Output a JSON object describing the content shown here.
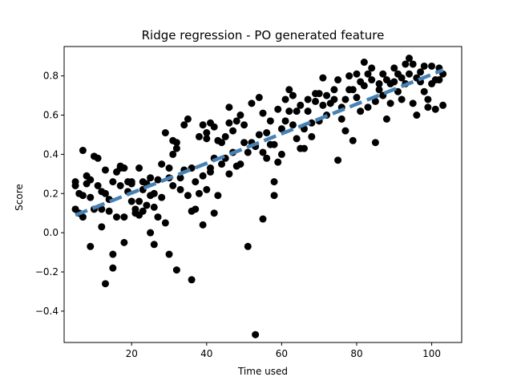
{
  "chart_data": {
    "type": "scatter",
    "title": "Ridge regression - PO generated feature",
    "xlabel": "Time used",
    "ylabel": "Score",
    "xlim": [
      2.0,
      108.0
    ],
    "ylim": [
      -0.56,
      0.95
    ],
    "xticks": [
      20,
      40,
      60,
      80,
      100
    ],
    "yticks": [
      -0.4,
      -0.2,
      0.0,
      0.2,
      0.4,
      0.6,
      0.8
    ],
    "grid": false,
    "legend": "none",
    "colors": {
      "points": "#000000",
      "fit_line": "#4682b4"
    },
    "fit_line": {
      "style": "dashed",
      "x": [
        5,
        103
      ],
      "y": [
        0.09,
        0.83
      ]
    },
    "points": [
      [
        5,
        0.26
      ],
      [
        5,
        0.24
      ],
      [
        5,
        0.12
      ],
      [
        6,
        0.2
      ],
      [
        6,
        0.1
      ],
      [
        7,
        0.42
      ],
      [
        7,
        0.19
      ],
      [
        7,
        0.08
      ],
      [
        8,
        0.29
      ],
      [
        8,
        0.25
      ],
      [
        9,
        -0.07
      ],
      [
        9,
        0.27
      ],
      [
        9,
        0.18
      ],
      [
        10,
        0.39
      ],
      [
        10,
        0.12
      ],
      [
        11,
        0.38
      ],
      [
        11,
        0.24
      ],
      [
        12,
        0.21
      ],
      [
        12,
        0.03
      ],
      [
        12,
        0.12
      ],
      [
        13,
        0.32
      ],
      [
        13,
        -0.26
      ],
      [
        13,
        0.2
      ],
      [
        14,
        0.11
      ],
      [
        14,
        0.17
      ],
      [
        15,
        -0.18
      ],
      [
        15,
        -0.11
      ],
      [
        15,
        0.26
      ],
      [
        16,
        0.08
      ],
      [
        16,
        0.31
      ],
      [
        17,
        0.33
      ],
      [
        17,
        0.24
      ],
      [
        17,
        0.34
      ],
      [
        18,
        0.08
      ],
      [
        18,
        -0.05
      ],
      [
        18,
        0.33
      ],
      [
        19,
        0.26
      ],
      [
        19,
        0.21
      ],
      [
        20,
        0.25
      ],
      [
        20,
        0.16
      ],
      [
        20,
        0.26
      ],
      [
        21,
        0.1
      ],
      [
        21,
        0.12
      ],
      [
        22,
        0.33
      ],
      [
        22,
        0.16
      ],
      [
        22,
        0.09
      ],
      [
        23,
        0.11
      ],
      [
        23,
        0.22
      ],
      [
        23,
        0.26
      ],
      [
        24,
        0.14
      ],
      [
        24,
        0.25
      ],
      [
        25,
        0.0
      ],
      [
        25,
        0.19
      ],
      [
        25,
        0.28
      ],
      [
        26,
        -0.06
      ],
      [
        26,
        0.13
      ],
      [
        26,
        0.2
      ],
      [
        27,
        0.08
      ],
      [
        27,
        0.27
      ],
      [
        28,
        0.35
      ],
      [
        28,
        0.18
      ],
      [
        29,
        0.51
      ],
      [
        29,
        0.05
      ],
      [
        30,
        -0.11
      ],
      [
        30,
        0.28
      ],
      [
        30,
        0.33
      ],
      [
        31,
        0.47
      ],
      [
        31,
        0.4
      ],
      [
        31,
        0.24
      ],
      [
        32,
        -0.19
      ],
      [
        32,
        0.46
      ],
      [
        32,
        0.43
      ],
      [
        33,
        0.22
      ],
      [
        33,
        0.28
      ],
      [
        34,
        0.55
      ],
      [
        34,
        0.32
      ],
      [
        35,
        0.58
      ],
      [
        35,
        0.19
      ],
      [
        36,
        -0.24
      ],
      [
        36,
        0.11
      ],
      [
        36,
        0.33
      ],
      [
        37,
        0.26
      ],
      [
        37,
        0.12
      ],
      [
        38,
        0.49
      ],
      [
        38,
        0.2
      ],
      [
        39,
        0.04
      ],
      [
        39,
        0.55
      ],
      [
        39,
        0.29
      ],
      [
        40,
        0.51
      ],
      [
        40,
        0.48
      ],
      [
        40,
        0.22
      ],
      [
        41,
        0.56
      ],
      [
        41,
        0.31
      ],
      [
        41,
        0.33
      ],
      [
        42,
        0.38
      ],
      [
        42,
        0.54
      ],
      [
        42,
        0.1
      ],
      [
        43,
        0.47
      ],
      [
        43,
        0.19
      ],
      [
        44,
        0.46
      ],
      [
        44,
        0.35
      ],
      [
        45,
        0.49
      ],
      [
        45,
        0.38
      ],
      [
        46,
        0.3
      ],
      [
        46,
        0.64
      ],
      [
        46,
        0.56
      ],
      [
        47,
        0.41
      ],
      [
        47,
        0.52
      ],
      [
        48,
        0.34
      ],
      [
        48,
        0.57
      ],
      [
        49,
        0.6
      ],
      [
        49,
        0.35
      ],
      [
        50,
        0.46
      ],
      [
        50,
        0.55
      ],
      [
        51,
        -0.07
      ],
      [
        51,
        0.41
      ],
      [
        52,
        0.66
      ],
      [
        52,
        0.46
      ],
      [
        53,
        -0.52
      ],
      [
        53,
        0.44
      ],
      [
        54,
        0.69
      ],
      [
        54,
        0.5
      ],
      [
        55,
        0.07
      ],
      [
        55,
        0.61
      ],
      [
        55,
        0.41
      ],
      [
        56,
        0.38
      ],
      [
        56,
        0.51
      ],
      [
        57,
        0.45
      ],
      [
        57,
        0.57
      ],
      [
        58,
        0.26
      ],
      [
        58,
        0.19
      ],
      [
        58,
        0.45
      ],
      [
        59,
        0.63
      ],
      [
        59,
        0.36
      ],
      [
        60,
        0.53
      ],
      [
        60,
        0.4
      ],
      [
        61,
        0.68
      ],
      [
        61,
        0.57
      ],
      [
        62,
        0.62
      ],
      [
        62,
        0.73
      ],
      [
        63,
        0.7
      ],
      [
        63,
        0.55
      ],
      [
        64,
        0.48
      ],
      [
        64,
        0.62
      ],
      [
        65,
        0.43
      ],
      [
        65,
        0.65
      ],
      [
        66,
        0.43
      ],
      [
        66,
        0.53
      ],
      [
        67,
        0.68
      ],
      [
        67,
        0.62
      ],
      [
        68,
        0.49
      ],
      [
        68,
        0.56
      ],
      [
        69,
        0.71
      ],
      [
        69,
        0.67
      ],
      [
        70,
        0.57
      ],
      [
        70,
        0.71
      ],
      [
        71,
        0.79
      ],
      [
        71,
        0.65
      ],
      [
        72,
        0.7
      ],
      [
        72,
        0.6
      ],
      [
        73,
        0.66
      ],
      [
        74,
        0.73
      ],
      [
        74,
        0.68
      ],
      [
        75,
        0.37
      ],
      [
        75,
        0.78
      ],
      [
        76,
        0.58
      ],
      [
        76,
        0.64
      ],
      [
        77,
        0.52
      ],
      [
        77,
        0.68
      ],
      [
        78,
        0.73
      ],
      [
        78,
        0.8
      ],
      [
        79,
        0.73
      ],
      [
        79,
        0.47
      ],
      [
        80,
        0.81
      ],
      [
        80,
        0.69
      ],
      [
        81,
        0.62
      ],
      [
        81,
        0.77
      ],
      [
        82,
        0.87
      ],
      [
        82,
        0.75
      ],
      [
        83,
        0.81
      ],
      [
        83,
        0.64
      ],
      [
        84,
        0.78
      ],
      [
        84,
        0.84
      ],
      [
        85,
        0.46
      ],
      [
        85,
        0.67
      ],
      [
        86,
        0.73
      ],
      [
        86,
        0.76
      ],
      [
        87,
        0.81
      ],
      [
        87,
        0.7
      ],
      [
        88,
        0.58
      ],
      [
        88,
        0.78
      ],
      [
        89,
        0.76
      ],
      [
        89,
        0.66
      ],
      [
        90,
        0.84
      ],
      [
        90,
        0.77
      ],
      [
        91,
        0.72
      ],
      [
        91,
        0.81
      ],
      [
        92,
        0.79
      ],
      [
        92,
        0.68
      ],
      [
        93,
        0.86
      ],
      [
        93,
        0.76
      ],
      [
        94,
        0.89
      ],
      [
        94,
        0.81
      ],
      [
        95,
        0.66
      ],
      [
        95,
        0.86
      ],
      [
        96,
        0.6
      ],
      [
        96,
        0.79
      ],
      [
        97,
        0.82
      ],
      [
        97,
        0.77
      ],
      [
        98,
        0.85
      ],
      [
        98,
        0.72
      ],
      [
        99,
        0.68
      ],
      [
        99,
        0.64
      ],
      [
        100,
        0.85
      ],
      [
        100,
        0.76
      ],
      [
        101,
        0.78
      ],
      [
        101,
        0.63
      ],
      [
        102,
        0.84
      ],
      [
        102,
        0.78
      ],
      [
        103,
        0.81
      ],
      [
        103,
        0.65
      ]
    ]
  }
}
